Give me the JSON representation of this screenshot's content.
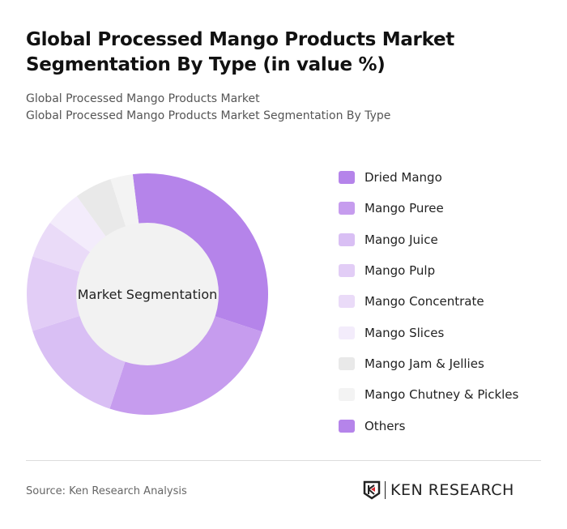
{
  "title": "Global Processed Mango Products Market Segmentation By Type (in value %)",
  "subtitle1": "Global Processed Mango Products Market",
  "subtitle2": "Global Processed Mango Products Market Segmentation By Type",
  "source": "Source: Ken Research Analysis",
  "logo": "KEN RESEARCH",
  "chart_data": {
    "type": "pie",
    "variant": "donut",
    "center_label": "Market Segmentation",
    "legend_position": "right",
    "categories": [
      "Dried Mango",
      "Mango Puree",
      "Mango Juice",
      "Mango Pulp",
      "Mango Concentrate",
      "Mango Slices",
      "Mango Jam & Jellies",
      "Mango Chutney & Pickles",
      "Others"
    ],
    "values": [
      32,
      25,
      15,
      10,
      5,
      5,
      5,
      3,
      0
    ],
    "colors": [
      "#b584ea",
      "#c69cee",
      "#d9bff4",
      "#e2cdf6",
      "#eadbf8",
      "#f3ecfb",
      "#e9e9e9",
      "#f3f3f3",
      "#b584ea"
    ]
  }
}
